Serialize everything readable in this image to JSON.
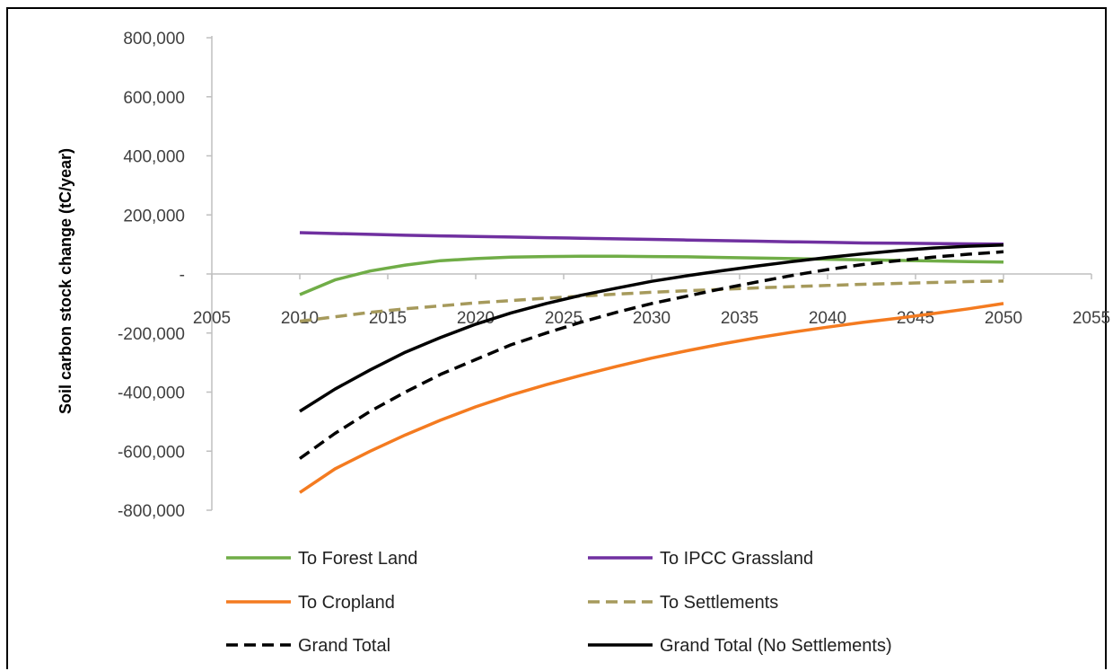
{
  "chart_data": {
    "type": "line",
    "title": "",
    "xlabel": "",
    "ylabel": "Soil carbon stock change (tC/year)",
    "xlim": [
      2005,
      2055
    ],
    "ylim": [
      -800000,
      800000
    ],
    "x_ticks": [
      "2005",
      "2010",
      "2015",
      "2020",
      "2025",
      "2030",
      "2035",
      "2040",
      "2045",
      "2050",
      "2055"
    ],
    "y_ticks": [
      {
        "value": 800000,
        "label": "800,000"
      },
      {
        "value": 600000,
        "label": "600,000"
      },
      {
        "value": 400000,
        "label": "400,000"
      },
      {
        "value": 200000,
        "label": "200,000"
      },
      {
        "value": 0,
        "label": "-"
      },
      {
        "value": -200000,
        "label": "-200,000"
      },
      {
        "value": -400000,
        "label": "-400,000"
      },
      {
        "value": -600000,
        "label": "-600,000"
      },
      {
        "value": -800000,
        "label": "-800,000"
      }
    ],
    "grid": false,
    "legend_position": "bottom",
    "x": [
      2010,
      2012,
      2014,
      2016,
      2018,
      2020,
      2022,
      2024,
      2026,
      2028,
      2030,
      2032,
      2034,
      2036,
      2038,
      2040,
      2042,
      2044,
      2046,
      2048,
      2050
    ],
    "series": [
      {
        "name": "To Forest Land",
        "color": "#70ad47",
        "dash": false,
        "values": [
          -70000,
          -20000,
          10000,
          30000,
          45000,
          52000,
          57000,
          59000,
          60000,
          60000,
          59000,
          58000,
          56000,
          54000,
          52000,
          50000,
          48000,
          46000,
          44000,
          42000,
          40000
        ]
      },
      {
        "name": "To IPCC Grassland",
        "color": "#7030a0",
        "dash": false,
        "values": [
          140000,
          137000,
          134000,
          131000,
          129000,
          127000,
          125000,
          123000,
          121000,
          119000,
          117000,
          115000,
          113000,
          111000,
          109000,
          107000,
          105000,
          104000,
          103000,
          102000,
          101000
        ]
      },
      {
        "name": "To Cropland",
        "color": "#f47b20",
        "dash": false,
        "values": [
          -740000,
          -660000,
          -600000,
          -545000,
          -495000,
          -450000,
          -410000,
          -375000,
          -343000,
          -313000,
          -285000,
          -260000,
          -237000,
          -216000,
          -197000,
          -180000,
          -164000,
          -150000,
          -134000,
          -118000,
          -100000
        ]
      },
      {
        "name": "To Settlements",
        "color": "#a69a5c",
        "dash": true,
        "values": [
          -160000,
          -145000,
          -130000,
          -118000,
          -108000,
          -98000,
          -90000,
          -82000,
          -75000,
          -68000,
          -62000,
          -57000,
          -52000,
          -47000,
          -43000,
          -39000,
          -35000,
          -32000,
          -29000,
          -26000,
          -24000
        ]
      },
      {
        "name": "Grand Total",
        "color": "#000000",
        "dash": true,
        "values": [
          -625000,
          -540000,
          -465000,
          -400000,
          -340000,
          -290000,
          -240000,
          -200000,
          -163000,
          -130000,
          -100000,
          -75000,
          -50000,
          -27000,
          -5000,
          15000,
          32000,
          45000,
          57000,
          67000,
          75000
        ]
      },
      {
        "name": "Grand Total (No Settlements)",
        "color": "#000000",
        "dash": false,
        "values": [
          -465000,
          -390000,
          -325000,
          -265000,
          -215000,
          -170000,
          -132000,
          -100000,
          -72000,
          -48000,
          -25000,
          -6000,
          11000,
          27000,
          42000,
          56000,
          68000,
          79000,
          88000,
          94000,
          98000
        ]
      }
    ]
  }
}
